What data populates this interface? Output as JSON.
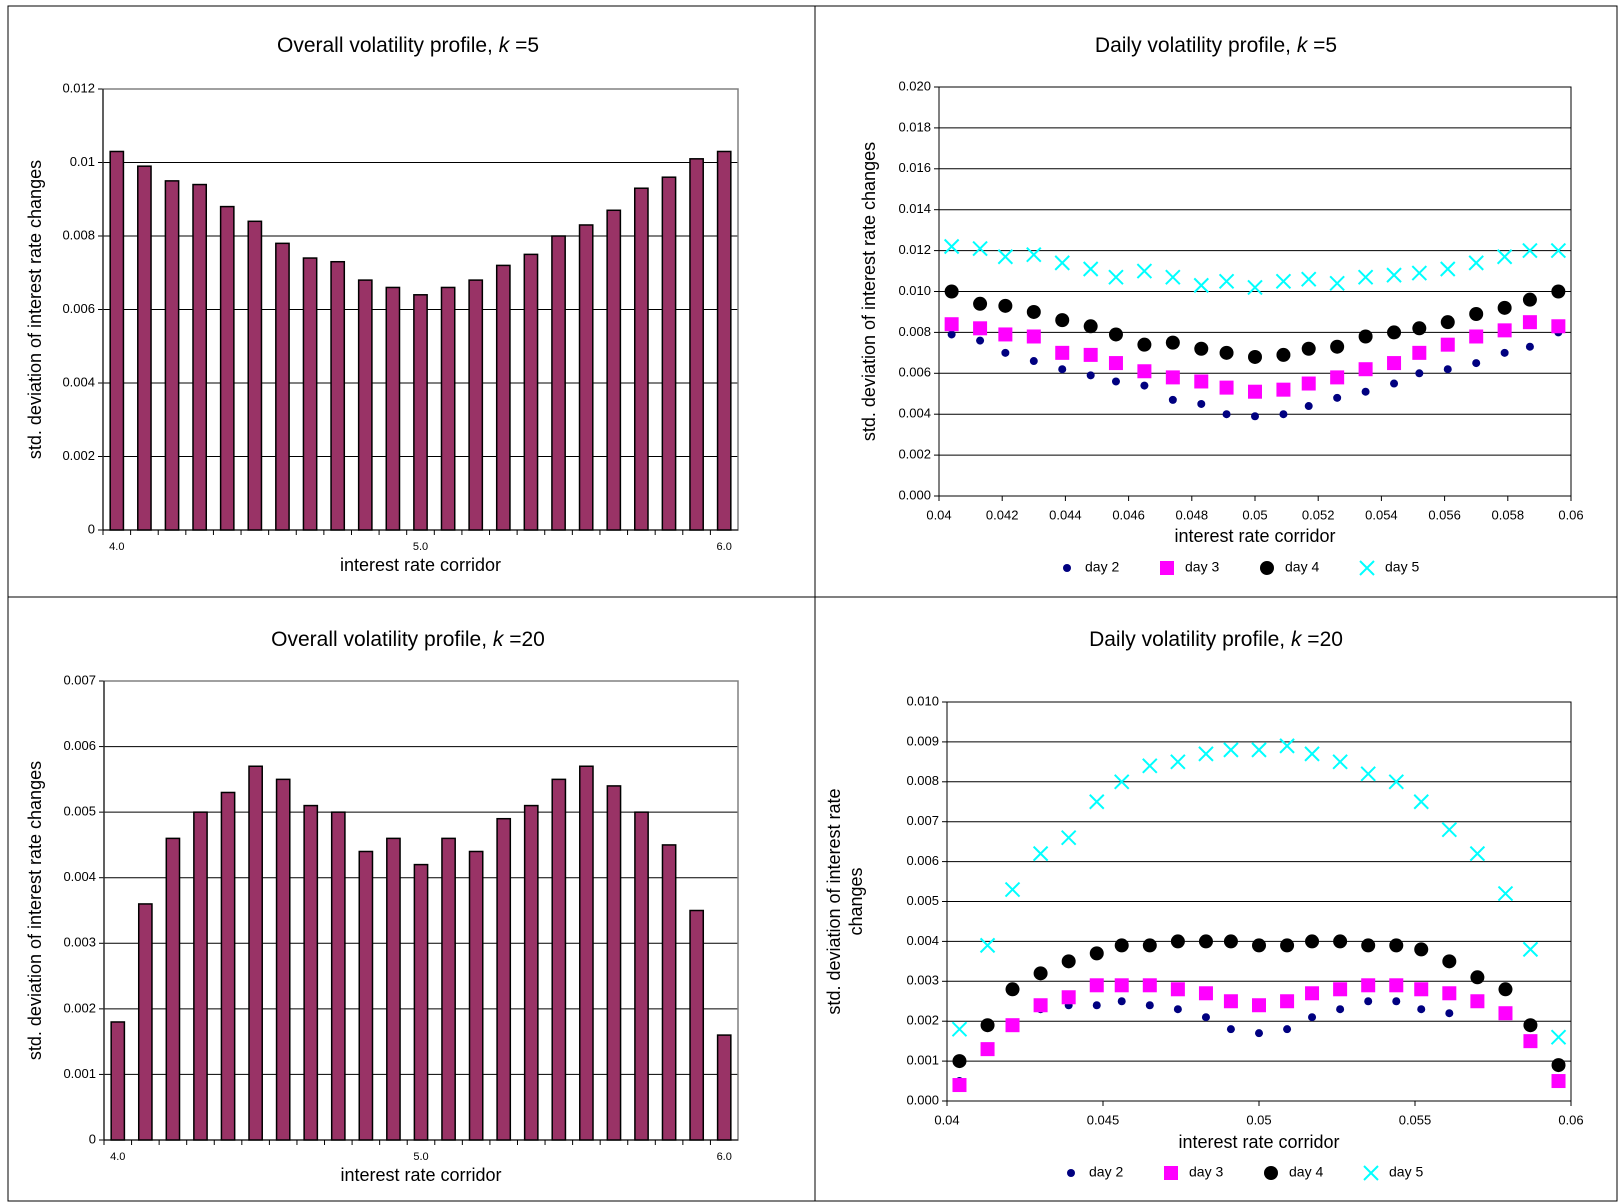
{
  "chart_data": [
    {
      "type": "bar",
      "title": [
        "Overall volatility profile, ",
        "k",
        " =5"
      ],
      "x_label": "interest rate corridor",
      "y_label": [
        "std. deviation of interest rate changes"
      ],
      "categories": [
        "4.0",
        null,
        null,
        null,
        null,
        null,
        null,
        null,
        null,
        null,
        null,
        "5.0",
        null,
        null,
        null,
        null,
        null,
        null,
        null,
        null,
        null,
        null,
        "6.0"
      ],
      "values": [
        0.0103,
        0.0099,
        0.0095,
        0.0094,
        0.0088,
        0.0084,
        0.0078,
        0.0074,
        0.0073,
        0.0068,
        0.0066,
        0.0064,
        0.0066,
        0.0068,
        0.0072,
        0.0075,
        0.008,
        0.0083,
        0.0087,
        0.0093,
        0.0096,
        0.0101,
        0.0103
      ],
      "color": "#993366",
      "ylim": [
        0,
        0.012
      ],
      "yticks": [
        0,
        0.002,
        0.004,
        0.006,
        0.008,
        0.01,
        0.012
      ],
      "grid": true
    },
    {
      "type": "scatter",
      "title": [
        "Daily volatility profile, ",
        "k",
        " =5"
      ],
      "x_label": "interest rate corridor",
      "y_label": [
        "std. deviation of interest rate changes"
      ],
      "x": [
        0.0404,
        0.0413,
        0.0421,
        0.043,
        0.0439,
        0.0448,
        0.0456,
        0.0465,
        0.0474,
        0.0483,
        0.0491,
        0.05,
        0.0509,
        0.0517,
        0.0526,
        0.0535,
        0.0544,
        0.0552,
        0.0561,
        0.057,
        0.0579,
        0.0587,
        0.0596
      ],
      "series": [
        {
          "name": "day 2",
          "color": "#000080",
          "marker": "circle",
          "values": [
            0.0079,
            0.0076,
            0.007,
            0.0066,
            0.0062,
            0.0059,
            0.0056,
            0.0054,
            0.0047,
            0.0045,
            0.004,
            0.0039,
            0.004,
            0.0044,
            0.0048,
            0.0051,
            0.0055,
            0.006,
            0.0062,
            0.0065,
            0.007,
            0.0073,
            0.008
          ]
        },
        {
          "name": "day 3",
          "color": "#ff00ff",
          "marker": "square",
          "values": [
            0.0084,
            0.0082,
            0.0079,
            0.0078,
            0.007,
            0.0069,
            0.0065,
            0.0061,
            0.0058,
            0.0056,
            0.0053,
            0.0051,
            0.0052,
            0.0055,
            0.0058,
            0.0062,
            0.0065,
            0.007,
            0.0074,
            0.0078,
            0.0081,
            0.0085,
            0.0083
          ]
        },
        {
          "name": "day 4",
          "color": "#000000",
          "marker": "circle",
          "values": [
            0.01,
            0.0094,
            0.0093,
            0.009,
            0.0086,
            0.0083,
            0.0079,
            0.0074,
            0.0075,
            0.0072,
            0.007,
            0.0068,
            0.0069,
            0.0072,
            0.0073,
            0.0078,
            0.008,
            0.0082,
            0.0085,
            0.0089,
            0.0092,
            0.0096,
            0.01
          ]
        },
        {
          "name": "day 5",
          "color": "#00ffff",
          "marker": "x",
          "values": [
            0.0122,
            0.0121,
            0.0117,
            0.0118,
            0.0114,
            0.0111,
            0.0107,
            0.011,
            0.0107,
            0.0103,
            0.0105,
            0.0102,
            0.0105,
            0.0106,
            0.0104,
            0.0107,
            0.0108,
            0.0109,
            0.0111,
            0.0114,
            0.0117,
            0.012,
            0.012
          ]
        }
      ],
      "xlim": [
        0.04,
        0.06
      ],
      "xticks": [
        0.04,
        0.042,
        0.044,
        0.046,
        0.048,
        0.05,
        0.052,
        0.054,
        0.056,
        0.058,
        0.06
      ],
      "ylim": [
        0,
        0.02
      ],
      "yticks": [
        {
          "value": 0,
          "label": "0.000"
        },
        {
          "value": 0.002,
          "label": "0.002"
        },
        {
          "value": 0.004,
          "label": "0.004"
        },
        {
          "value": 0.006,
          "label": "0.006"
        },
        {
          "value": 0.008,
          "label": "0.008"
        },
        {
          "value": 0.01,
          "label": "0.010"
        },
        {
          "value": 0.012,
          "label": "0.012"
        },
        {
          "value": 0.014,
          "label": "0.014"
        },
        {
          "value": 0.016,
          "label": "0.016"
        },
        {
          "value": 0.018,
          "label": "0.018"
        },
        {
          "value": 0.02,
          "label": "0.020"
        }
      ],
      "grid": true,
      "legend": "bottom"
    },
    {
      "type": "bar",
      "title": [
        "Overall volatility profile, ",
        "k",
        " =20"
      ],
      "x_label": "interest rate corridor",
      "y_label": [
        "std. deviation of interest rate changes"
      ],
      "categories": [
        "4.0",
        null,
        null,
        null,
        null,
        null,
        null,
        null,
        null,
        null,
        null,
        "5.0",
        null,
        null,
        null,
        null,
        null,
        null,
        null,
        null,
        null,
        null,
        "6.0"
      ],
      "values": [
        0.0018,
        0.0036,
        0.0046,
        0.005,
        0.0053,
        0.0057,
        0.0055,
        0.0051,
        0.005,
        0.0044,
        0.0046,
        0.0042,
        0.0046,
        0.0044,
        0.0049,
        0.0051,
        0.0055,
        0.0057,
        0.0054,
        0.005,
        0.0045,
        0.0035,
        0.0016
      ],
      "color": "#993366",
      "ylim": [
        0,
        0.007
      ],
      "yticks": [
        0,
        0.001,
        0.002,
        0.003,
        0.004,
        0.005,
        0.006,
        0.007
      ],
      "grid": true
    },
    {
      "type": "scatter",
      "title": [
        "Daily volatility profile, ",
        "k",
        " =20"
      ],
      "x_label": "interest rate corridor",
      "y_label": [
        "std. deviation of interest rate",
        "changes"
      ],
      "x": [
        0.0404,
        0.0413,
        0.0421,
        0.043,
        0.0439,
        0.0448,
        0.0456,
        0.0465,
        0.0474,
        0.0483,
        0.0491,
        0.05,
        0.0509,
        0.0517,
        0.0526,
        0.0535,
        0.0544,
        0.0552,
        0.0561,
        0.057,
        0.0579,
        0.0587,
        0.0596
      ],
      "series": [
        {
          "name": "day 2",
          "color": "#000080",
          "marker": "circle",
          "values": [
            0.0005,
            0.0013,
            0.0019,
            0.0023,
            0.0024,
            0.0024,
            0.0025,
            0.0024,
            0.0023,
            0.0021,
            0.0018,
            0.0017,
            0.0018,
            0.0021,
            0.0023,
            0.0025,
            0.0025,
            0.0023,
            0.0022,
            0.0025,
            0.0022,
            0.0015,
            0.0005
          ]
        },
        {
          "name": "day 3",
          "color": "#ff00ff",
          "marker": "square",
          "values": [
            0.0004,
            0.0013,
            0.0019,
            0.0024,
            0.0026,
            0.0029,
            0.0029,
            0.0029,
            0.0028,
            0.0027,
            0.0025,
            0.0024,
            0.0025,
            0.0027,
            0.0028,
            0.0029,
            0.0029,
            0.0028,
            0.0027,
            0.0025,
            0.0022,
            0.0015,
            0.0005
          ]
        },
        {
          "name": "day 4",
          "color": "#000000",
          "marker": "circle",
          "values": [
            0.001,
            0.0019,
            0.0028,
            0.0032,
            0.0035,
            0.0037,
            0.0039,
            0.0039,
            0.004,
            0.004,
            0.004,
            0.0039,
            0.0039,
            0.004,
            0.004,
            0.0039,
            0.0039,
            0.0038,
            0.0035,
            0.0031,
            0.0028,
            0.0019,
            0.0009
          ]
        },
        {
          "name": "day 5",
          "color": "#00ffff",
          "marker": "x",
          "values": [
            0.0018,
            0.0039,
            0.0053,
            0.0062,
            0.0066,
            0.0075,
            0.008,
            0.0084,
            0.0085,
            0.0087,
            0.0088,
            0.0088,
            0.0089,
            0.0087,
            0.0085,
            0.0082,
            0.008,
            0.0075,
            0.0068,
            0.0062,
            0.0052,
            0.0038,
            0.0016
          ]
        }
      ],
      "xlim": [
        0.04,
        0.06
      ],
      "xticks": [
        0.04,
        0.045,
        0.05,
        0.055,
        0.06
      ],
      "ylim": [
        0,
        0.01
      ],
      "yticks": [
        {
          "value": 0,
          "label": "0.000"
        },
        {
          "value": 0.001,
          "label": "0.001"
        },
        {
          "value": 0.002,
          "label": "0.002"
        },
        {
          "value": 0.003,
          "label": "0.003"
        },
        {
          "value": 0.004,
          "label": "0.004"
        },
        {
          "value": 0.005,
          "label": "0.005"
        },
        {
          "value": 0.006,
          "label": "0.006"
        },
        {
          "value": 0.007,
          "label": "0.007"
        },
        {
          "value": 0.008,
          "label": "0.008"
        },
        {
          "value": 0.009,
          "label": "0.009"
        },
        {
          "value": 0.01,
          "label": "0.010"
        }
      ],
      "grid": true,
      "legend": "bottom"
    }
  ]
}
